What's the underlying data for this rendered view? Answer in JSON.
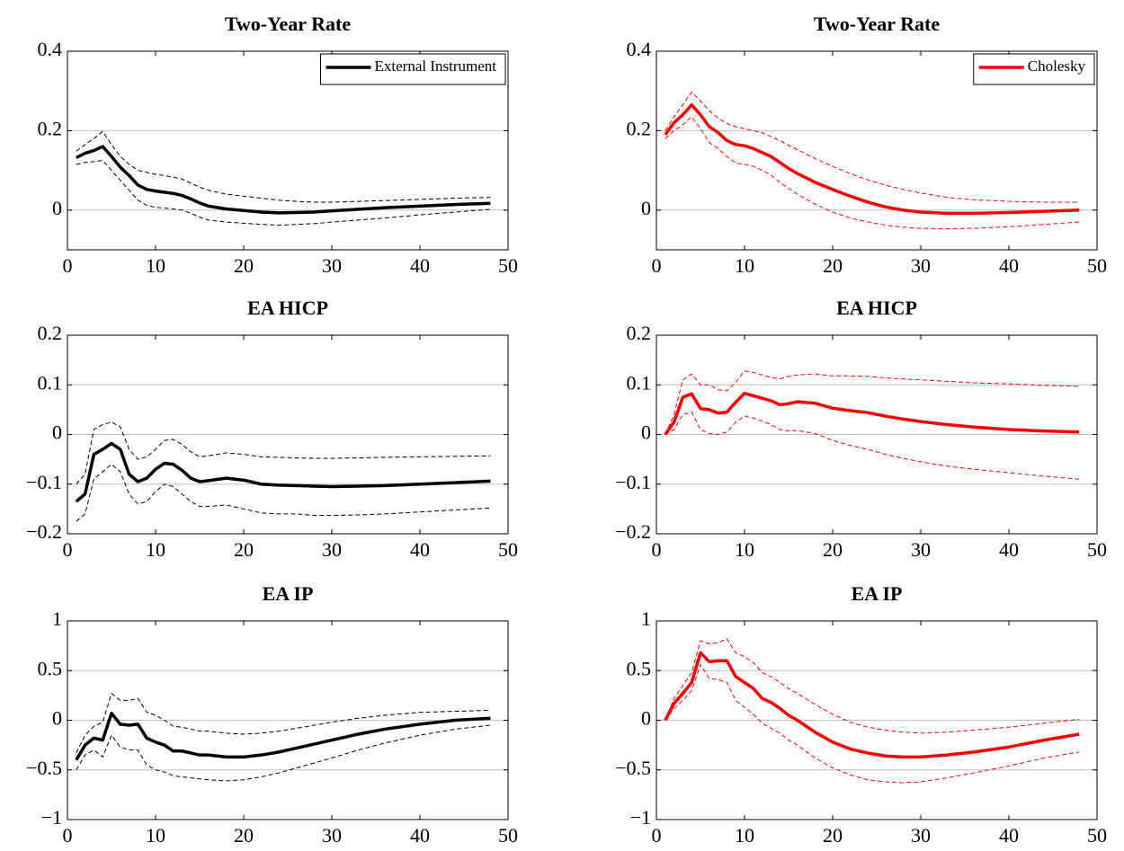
{
  "chart_data": [
    {
      "type": "line",
      "title": "Two-Year Rate",
      "x": [
        1,
        2,
        3,
        4,
        5,
        6,
        7,
        8,
        9,
        10,
        11,
        12,
        13,
        14,
        15,
        16,
        18,
        20,
        22,
        24,
        26,
        28,
        30,
        33,
        36,
        40,
        44,
        48
      ],
      "series": [
        {
          "name": "External Instrument",
          "color": "#000000",
          "values": [
            0.132,
            0.143,
            0.15,
            0.16,
            0.135,
            0.108,
            0.087,
            0.063,
            0.052,
            0.048,
            0.045,
            0.042,
            0.037,
            0.028,
            0.018,
            0.01,
            0.003,
            -0.001,
            -0.005,
            -0.007,
            -0.006,
            -0.005,
            -0.002,
            0.002,
            0.006,
            0.01,
            0.014,
            0.017
          ]
        },
        {
          "color": "#000000",
          "dashed": true,
          "values": [
            0.148,
            0.165,
            0.18,
            0.198,
            0.165,
            0.135,
            0.115,
            0.1,
            0.095,
            0.09,
            0.087,
            0.083,
            0.078,
            0.068,
            0.058,
            0.05,
            0.04,
            0.035,
            0.03,
            0.025,
            0.022,
            0.02,
            0.02,
            0.022,
            0.024,
            0.027,
            0.03,
            0.032
          ]
        },
        {
          "color": "#000000",
          "dashed": true,
          "values": [
            0.115,
            0.12,
            0.122,
            0.125,
            0.1,
            0.075,
            0.05,
            0.025,
            0.012,
            0.007,
            0.005,
            0.003,
            0.0,
            -0.008,
            -0.018,
            -0.025,
            -0.03,
            -0.033,
            -0.036,
            -0.038,
            -0.036,
            -0.034,
            -0.03,
            -0.025,
            -0.02,
            -0.012,
            -0.005,
            0.002
          ]
        }
      ],
      "xlim": [
        0,
        50
      ],
      "xticks": [
        0,
        10,
        20,
        30,
        40,
        50
      ],
      "ylim": [
        -0.1,
        0.4
      ],
      "yticks": [
        0,
        0.2,
        0.4
      ],
      "grid": true,
      "legend": "upper right"
    },
    {
      "type": "line",
      "title": "Two-Year Rate",
      "x": [
        1,
        2,
        3,
        4,
        5,
        6,
        7,
        8,
        9,
        10,
        11,
        12,
        13,
        14,
        15,
        16,
        18,
        20,
        22,
        24,
        26,
        28,
        30,
        33,
        36,
        40,
        44,
        48
      ],
      "series": [
        {
          "name": "Cholesky",
          "color": "#ff0000",
          "values": [
            0.19,
            0.22,
            0.24,
            0.265,
            0.24,
            0.21,
            0.195,
            0.175,
            0.165,
            0.162,
            0.155,
            0.145,
            0.135,
            0.12,
            0.105,
            0.092,
            0.07,
            0.052,
            0.035,
            0.02,
            0.008,
            0.0,
            -0.005,
            -0.008,
            -0.008,
            -0.006,
            -0.003,
            0.0
          ]
        },
        {
          "color": "#ff0000",
          "dashed": true,
          "values": [
            0.2,
            0.235,
            0.265,
            0.297,
            0.275,
            0.25,
            0.232,
            0.218,
            0.21,
            0.205,
            0.2,
            0.195,
            0.185,
            0.175,
            0.163,
            0.152,
            0.13,
            0.11,
            0.092,
            0.076,
            0.063,
            0.052,
            0.043,
            0.032,
            0.026,
            0.022,
            0.02,
            0.02
          ]
        },
        {
          "color": "#ff0000",
          "dashed": true,
          "values": [
            0.18,
            0.2,
            0.215,
            0.235,
            0.205,
            0.17,
            0.155,
            0.135,
            0.118,
            0.115,
            0.11,
            0.1,
            0.088,
            0.07,
            0.055,
            0.04,
            0.015,
            -0.005,
            -0.02,
            -0.03,
            -0.038,
            -0.043,
            -0.046,
            -0.047,
            -0.046,
            -0.042,
            -0.036,
            -0.03
          ]
        }
      ],
      "xlim": [
        0,
        50
      ],
      "xticks": [
        0,
        10,
        20,
        30,
        40,
        50
      ],
      "ylim": [
        -0.1,
        0.4
      ],
      "yticks": [
        0,
        0.2,
        0.4
      ],
      "grid": true,
      "legend": "upper right"
    },
    {
      "type": "line",
      "title": "EA HICP",
      "x": [
        1,
        2,
        3,
        4,
        5,
        6,
        7,
        8,
        9,
        10,
        11,
        12,
        13,
        14,
        15,
        16,
        18,
        20,
        22,
        24,
        26,
        28,
        30,
        33,
        36,
        40,
        44,
        48
      ],
      "series": [
        {
          "color": "#000000",
          "values": [
            -0.135,
            -0.12,
            -0.04,
            -0.03,
            -0.018,
            -0.03,
            -0.08,
            -0.095,
            -0.088,
            -0.07,
            -0.058,
            -0.06,
            -0.072,
            -0.088,
            -0.095,
            -0.093,
            -0.088,
            -0.092,
            -0.1,
            -0.102,
            -0.103,
            -0.104,
            -0.105,
            -0.104,
            -0.103,
            -0.1,
            -0.097,
            -0.094
          ]
        },
        {
          "color": "#000000",
          "dashed": true,
          "values": [
            -0.1,
            -0.08,
            0.01,
            0.02,
            0.025,
            0.015,
            -0.03,
            -0.05,
            -0.045,
            -0.03,
            -0.012,
            -0.01,
            -0.02,
            -0.035,
            -0.045,
            -0.043,
            -0.037,
            -0.04,
            -0.045,
            -0.046,
            -0.047,
            -0.048,
            -0.048,
            -0.047,
            -0.046,
            -0.045,
            -0.044,
            -0.043
          ]
        },
        {
          "color": "#000000",
          "dashed": true,
          "values": [
            -0.175,
            -0.16,
            -0.09,
            -0.075,
            -0.06,
            -0.075,
            -0.12,
            -0.14,
            -0.135,
            -0.115,
            -0.1,
            -0.105,
            -0.12,
            -0.135,
            -0.145,
            -0.145,
            -0.142,
            -0.15,
            -0.158,
            -0.16,
            -0.16,
            -0.163,
            -0.163,
            -0.162,
            -0.16,
            -0.156,
            -0.152,
            -0.148
          ]
        }
      ],
      "xlim": [
        0,
        50
      ],
      "xticks": [
        0,
        10,
        20,
        30,
        40,
        50
      ],
      "ylim": [
        -0.2,
        0.2
      ],
      "yticks": [
        {
          "value": -0.2,
          "label": "−0.2"
        },
        {
          "value": -0.1,
          "label": "−0.1"
        },
        0,
        0.1,
        0.2
      ],
      "grid": true
    },
    {
      "type": "line",
      "title": "EA HICP",
      "x": [
        1,
        2,
        3,
        4,
        5,
        6,
        7,
        8,
        9,
        10,
        11,
        12,
        13,
        14,
        15,
        16,
        18,
        20,
        22,
        24,
        26,
        28,
        30,
        33,
        36,
        40,
        44,
        48
      ],
      "series": [
        {
          "color": "#ff0000",
          "values": [
            0.0,
            0.025,
            0.075,
            0.082,
            0.052,
            0.05,
            0.043,
            0.045,
            0.065,
            0.083,
            0.078,
            0.073,
            0.068,
            0.06,
            0.062,
            0.066,
            0.063,
            0.053,
            0.048,
            0.044,
            0.037,
            0.031,
            0.026,
            0.02,
            0.015,
            0.01,
            0.007,
            0.005
          ]
        },
        {
          "color": "#ff0000",
          "dashed": true,
          "values": [
            0.0,
            0.04,
            0.11,
            0.122,
            0.1,
            0.1,
            0.09,
            0.088,
            0.105,
            0.128,
            0.125,
            0.12,
            0.115,
            0.112,
            0.117,
            0.12,
            0.122,
            0.118,
            0.118,
            0.117,
            0.114,
            0.112,
            0.11,
            0.107,
            0.104,
            0.102,
            0.099,
            0.097
          ]
        },
        {
          "color": "#ff0000",
          "dashed": true,
          "values": [
            0.0,
            0.01,
            0.04,
            0.045,
            0.01,
            0.002,
            0.0,
            0.005,
            0.025,
            0.037,
            0.033,
            0.027,
            0.02,
            0.01,
            0.007,
            0.008,
            0.002,
            -0.012,
            -0.022,
            -0.03,
            -0.04,
            -0.048,
            -0.055,
            -0.064,
            -0.07,
            -0.077,
            -0.084,
            -0.09
          ]
        }
      ],
      "xlim": [
        0,
        50
      ],
      "xticks": [
        0,
        10,
        20,
        30,
        40,
        50
      ],
      "ylim": [
        -0.2,
        0.2
      ],
      "yticks": [
        {
          "value": -0.2,
          "label": "−0.2"
        },
        {
          "value": -0.1,
          "label": "−0.1"
        },
        0,
        0.1,
        0.2
      ],
      "grid": true
    },
    {
      "type": "line",
      "title": "EA IP",
      "x": [
        1,
        2,
        3,
        4,
        5,
        6,
        7,
        8,
        9,
        10,
        11,
        12,
        13,
        14,
        15,
        16,
        18,
        20,
        22,
        24,
        26,
        28,
        30,
        33,
        36,
        40,
        44,
        48
      ],
      "series": [
        {
          "color": "#000000",
          "values": [
            -0.4,
            -0.25,
            -0.18,
            -0.2,
            0.07,
            -0.04,
            -0.05,
            -0.04,
            -0.18,
            -0.22,
            -0.25,
            -0.31,
            -0.31,
            -0.33,
            -0.35,
            -0.35,
            -0.37,
            -0.37,
            -0.35,
            -0.32,
            -0.28,
            -0.24,
            -0.2,
            -0.14,
            -0.09,
            -0.04,
            0.0,
            0.02
          ]
        },
        {
          "color": "#000000",
          "dashed": true,
          "values": [
            -0.33,
            -0.15,
            -0.06,
            -0.02,
            0.27,
            0.2,
            0.2,
            0.22,
            0.08,
            0.05,
            0.0,
            -0.06,
            -0.07,
            -0.09,
            -0.11,
            -0.11,
            -0.13,
            -0.14,
            -0.13,
            -0.11,
            -0.08,
            -0.05,
            -0.02,
            0.02,
            0.05,
            0.08,
            0.09,
            0.1
          ]
        },
        {
          "color": "#000000",
          "dashed": true,
          "values": [
            -0.5,
            -0.35,
            -0.3,
            -0.37,
            -0.15,
            -0.27,
            -0.3,
            -0.3,
            -0.45,
            -0.5,
            -0.52,
            -0.56,
            -0.57,
            -0.58,
            -0.59,
            -0.6,
            -0.61,
            -0.6,
            -0.57,
            -0.53,
            -0.48,
            -0.43,
            -0.38,
            -0.3,
            -0.23,
            -0.15,
            -0.09,
            -0.05
          ]
        }
      ],
      "xlim": [
        0,
        50
      ],
      "xticks": [
        0,
        10,
        20,
        30,
        40,
        50
      ],
      "ylim": [
        -1,
        1
      ],
      "yticks": [
        {
          "value": -1,
          "label": "−1"
        },
        {
          "value": -0.5,
          "label": "−0.5"
        },
        0,
        0.5,
        1
      ],
      "grid": true
    },
    {
      "type": "line",
      "title": "EA IP",
      "x": [
        1,
        2,
        3,
        4,
        5,
        6,
        7,
        8,
        9,
        10,
        11,
        12,
        13,
        14,
        15,
        16,
        18,
        20,
        22,
        24,
        26,
        28,
        30,
        33,
        36,
        40,
        44,
        48
      ],
      "series": [
        {
          "color": "#ff0000",
          "values": [
            0.0,
            0.17,
            0.27,
            0.38,
            0.68,
            0.59,
            0.6,
            0.6,
            0.44,
            0.38,
            0.32,
            0.22,
            0.18,
            0.12,
            0.05,
            0.0,
            -0.12,
            -0.22,
            -0.29,
            -0.33,
            -0.36,
            -0.37,
            -0.37,
            -0.35,
            -0.32,
            -0.27,
            -0.2,
            -0.14
          ]
        },
        {
          "color": "#ff0000",
          "dashed": true,
          "values": [
            0.0,
            0.22,
            0.35,
            0.48,
            0.8,
            0.77,
            0.78,
            0.82,
            0.68,
            0.64,
            0.58,
            0.48,
            0.44,
            0.38,
            0.32,
            0.27,
            0.16,
            0.06,
            -0.02,
            -0.07,
            -0.1,
            -0.12,
            -0.13,
            -0.12,
            -0.1,
            -0.07,
            -0.03,
            0.01
          ]
        },
        {
          "color": "#ff0000",
          "dashed": true,
          "values": [
            0.0,
            0.12,
            0.2,
            0.3,
            0.56,
            0.42,
            0.41,
            0.38,
            0.2,
            0.13,
            0.06,
            -0.03,
            -0.08,
            -0.13,
            -0.2,
            -0.25,
            -0.38,
            -0.48,
            -0.55,
            -0.6,
            -0.62,
            -0.63,
            -0.62,
            -0.58,
            -0.53,
            -0.46,
            -0.38,
            -0.32
          ]
        }
      ],
      "xlim": [
        0,
        50
      ],
      "xticks": [
        0,
        10,
        20,
        30,
        40,
        50
      ],
      "ylim": [
        -1,
        1
      ],
      "yticks": [
        {
          "value": -1,
          "label": "−1"
        },
        {
          "value": -0.5,
          "label": "−0.5"
        },
        0,
        0.5,
        1
      ],
      "grid": true
    }
  ]
}
